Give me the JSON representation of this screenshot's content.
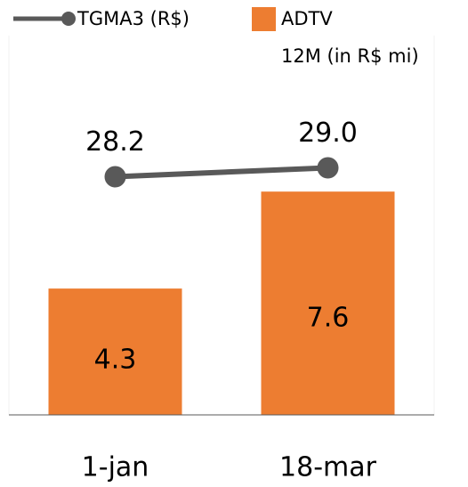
{
  "chart_data": {
    "type": "bar_line",
    "categories": [
      "1-jan",
      "18-mar"
    ],
    "series": [
      {
        "name": "TGMA3 (R$)",
        "type": "line",
        "axis": "y2",
        "color": "#595959",
        "values": [
          28.2,
          29.0
        ],
        "value_labels": [
          "28.2",
          "29.0"
        ]
      },
      {
        "name": "ADTV\n12M (in R$ mi)",
        "type": "bar",
        "color": "#ed7d31",
        "values": [
          4.3,
          7.6
        ]
      }
    ],
    "ylim": [
      0,
      10
    ],
    "y2lim": [
      6.8,
      33.2
    ]
  }
}
